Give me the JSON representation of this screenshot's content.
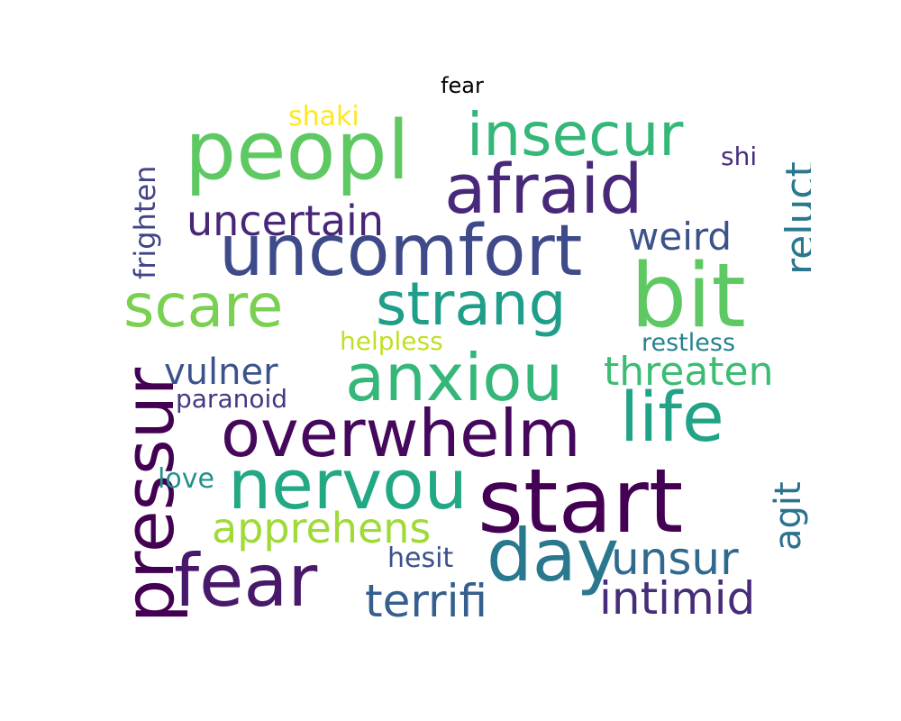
{
  "title": "fear",
  "words": [
    {
      "text": "peopl",
      "color": "#5ec962"
    },
    {
      "text": "insecur",
      "color": "#35b779"
    },
    {
      "text": "afraid",
      "color": "#482878"
    },
    {
      "text": "shaki",
      "color": "#fde725"
    },
    {
      "text": "shi",
      "color": "#472d7b"
    },
    {
      "text": "reluct",
      "color": "#2a788e"
    },
    {
      "text": "uncertain",
      "color": "#482677"
    },
    {
      "text": "weird",
      "color": "#3b528b"
    },
    {
      "text": "frighten",
      "color": "#414487"
    },
    {
      "text": "uncomfort",
      "color": "#3e4a89"
    },
    {
      "text": "scare",
      "color": "#7ad151"
    },
    {
      "text": "strang",
      "color": "#1f9e89"
    },
    {
      "text": "bit",
      "color": "#5ec962"
    },
    {
      "text": "helpless",
      "color": "#c2df23"
    },
    {
      "text": "restless",
      "color": "#26828e"
    },
    {
      "text": "pressur",
      "color": "#440154"
    },
    {
      "text": "vulner",
      "color": "#3b528b"
    },
    {
      "text": "anxiou",
      "color": "#35b779"
    },
    {
      "text": "threaten",
      "color": "#3dbc74"
    },
    {
      "text": "paranoid",
      "color": "#453781"
    },
    {
      "text": "overwhelm",
      "color": "#46085c"
    },
    {
      "text": "life",
      "color": "#20a386"
    },
    {
      "text": "love",
      "color": "#21918c"
    },
    {
      "text": "nervou",
      "color": "#22a884"
    },
    {
      "text": "start",
      "color": "#440154"
    },
    {
      "text": "agit",
      "color": "#2c728e"
    },
    {
      "text": "apprehens",
      "color": "#a0da39"
    },
    {
      "text": "fear",
      "color": "#48186a"
    },
    {
      "text": "day",
      "color": "#2a788e"
    },
    {
      "text": "unsur",
      "color": "#31688e"
    },
    {
      "text": "hesit",
      "color": "#3b528b"
    },
    {
      "text": "terrifi",
      "color": "#355f8d"
    },
    {
      "text": "intimid",
      "color": "#472c7a"
    }
  ]
}
